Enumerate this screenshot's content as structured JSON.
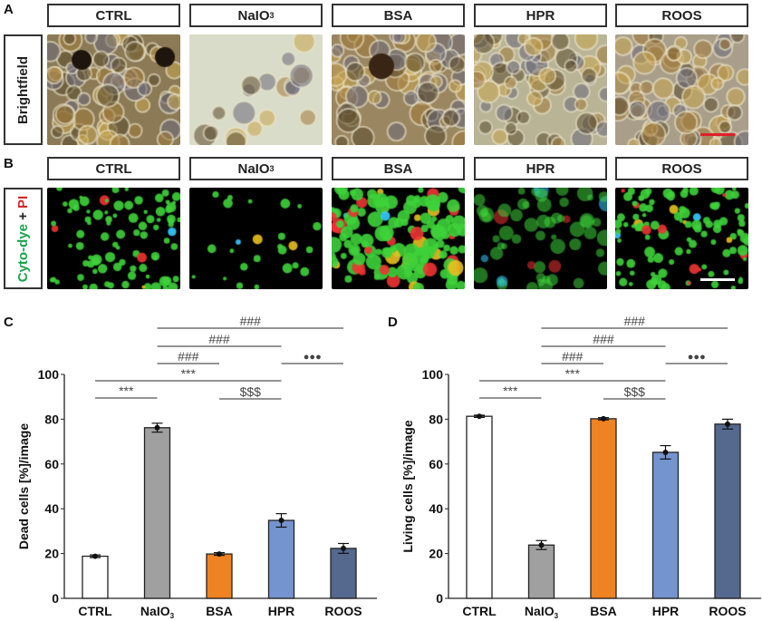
{
  "panels": {
    "A": "A",
    "B": "B",
    "C": "C",
    "D": "D"
  },
  "groups": [
    "CTRL",
    "NaIO",
    "BSA",
    "HPR",
    "ROOS"
  ],
  "group_subscript": {
    "NaIO": "3"
  },
  "row_labels": {
    "brightfield": "Brightfield",
    "fluorescence": {
      "part1": "Cyto-dye",
      "plus": " + ",
      "part2": "PI"
    }
  },
  "colors": {
    "cyto_dye": "#1aa34a",
    "pi": "#d62728",
    "scale_bar_brightfield": "#e0202a",
    "scale_bar_fluorescence": "#ffffff"
  },
  "chart_data": [
    {
      "type": "bar",
      "panel": "C",
      "categories": [
        "CTRL",
        "NaIO3",
        "BSA",
        "HPR",
        "ROOS"
      ],
      "values": [
        18.8,
        76.2,
        19.8,
        34.8,
        22.3
      ],
      "errors": [
        0.6,
        2.0,
        0.6,
        3.0,
        2.2
      ],
      "bar_colors": [
        "#ffffff",
        "#a0a0a0",
        "#ef8221",
        "#7494cf",
        "#55688e"
      ],
      "ylabel": "Dead cells [%]/image",
      "ylim": [
        0,
        100
      ],
      "yticks": [
        0,
        20,
        40,
        60,
        80,
        100
      ],
      "significance": [
        {
          "from": "CTRL",
          "to": "NaIO3",
          "label": "***"
        },
        {
          "from": "CTRL",
          "to": "HPR",
          "label": "***"
        },
        {
          "from": "BSA",
          "to": "HPR",
          "label": "$$$"
        },
        {
          "from": "NaIO3",
          "to": "BSA",
          "label": "###"
        },
        {
          "from": "NaIO3",
          "to": "HPR",
          "label": "###"
        },
        {
          "from": "NaIO3",
          "to": "ROOS",
          "label": "###"
        },
        {
          "from": "HPR",
          "to": "ROOS",
          "label": "●●●"
        }
      ]
    },
    {
      "type": "bar",
      "panel": "D",
      "categories": [
        "CTRL",
        "NaIO3",
        "BSA",
        "HPR",
        "ROOS"
      ],
      "values": [
        81.3,
        23.8,
        80.2,
        65.2,
        77.8
      ],
      "errors": [
        0.5,
        2.0,
        0.5,
        3.0,
        2.2
      ],
      "bar_colors": [
        "#ffffff",
        "#a0a0a0",
        "#ef8221",
        "#7494cf",
        "#55688e"
      ],
      "ylabel": "Living cells [%]/image",
      "ylim": [
        0,
        100
      ],
      "yticks": [
        0,
        20,
        40,
        60,
        80,
        100
      ],
      "significance": [
        {
          "from": "CTRL",
          "to": "NaIO3",
          "label": "***"
        },
        {
          "from": "CTRL",
          "to": "HPR",
          "label": "***"
        },
        {
          "from": "BSA",
          "to": "HPR",
          "label": "$$$"
        },
        {
          "from": "NaIO3",
          "to": "BSA",
          "label": "###"
        },
        {
          "from": "NaIO3",
          "to": "HPR",
          "label": "###"
        },
        {
          "from": "NaIO3",
          "to": "ROOS",
          "label": "###"
        },
        {
          "from": "HPR",
          "to": "ROOS",
          "label": "●●●"
        }
      ]
    }
  ]
}
